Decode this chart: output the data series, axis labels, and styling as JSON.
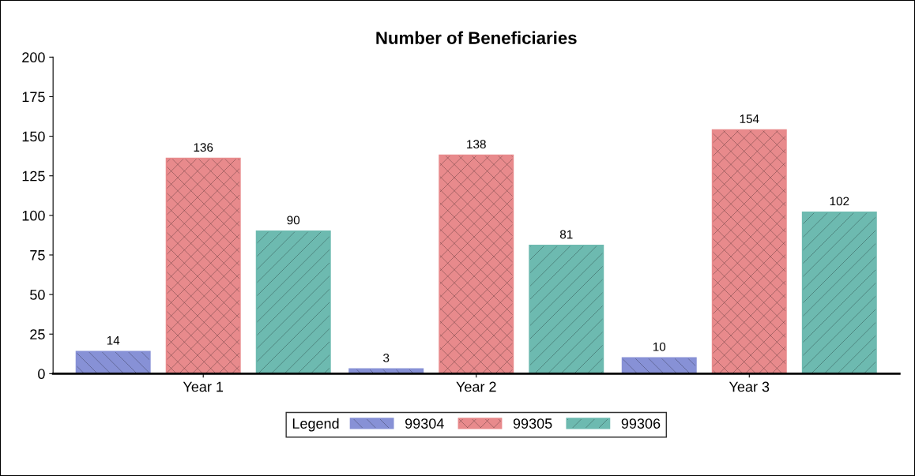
{
  "chart_data": {
    "type": "bar",
    "title": "Number of Beneficiaries",
    "categories": [
      "Year 1",
      "Year 2",
      "Year 3"
    ],
    "series": [
      {
        "name": "99304",
        "color": "#8791d6",
        "values": [
          14,
          3,
          10
        ]
      },
      {
        "name": "99305",
        "color": "#e88a8c",
        "values": [
          136,
          138,
          154
        ]
      },
      {
        "name": "99306",
        "color": "#6dbab0",
        "values": [
          90,
          81,
          102
        ]
      }
    ],
    "ylim": [
      0,
      200
    ],
    "yticks": [
      0,
      25,
      50,
      75,
      100,
      125,
      150,
      175,
      200
    ],
    "data_labels": true,
    "legend": "bottom",
    "legend_title": "Legend",
    "grid": false
  }
}
